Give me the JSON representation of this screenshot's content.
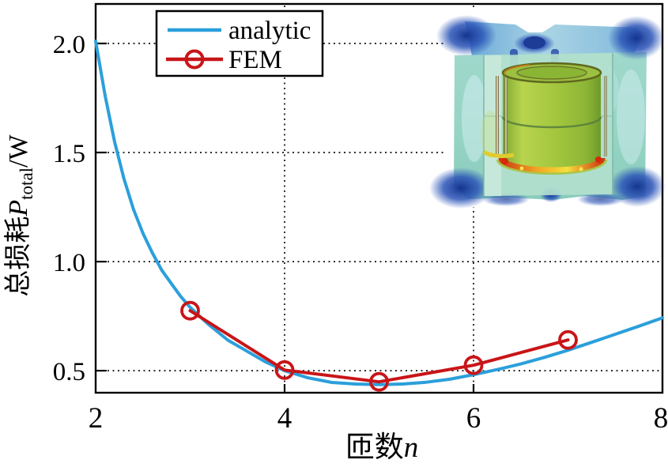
{
  "figure": {
    "legend": {
      "position": "top-left",
      "items": [
        {
          "label": "analytic",
          "marker": "line"
        },
        {
          "label": "FEM",
          "marker": "line-open-circle"
        }
      ]
    },
    "x_axis": {
      "title_prefix": "匝数",
      "title_symbol": "n",
      "tick_labels": [
        "2",
        "4",
        "6",
        "8"
      ]
    },
    "y_axis": {
      "title_prefix": "总损耗",
      "title_symbol": "P",
      "title_subscript": "total",
      "title_unit": "/W",
      "tick_labels": [
        "0.5",
        "1.0",
        "1.5",
        "2.0"
      ]
    }
  },
  "chart_data": {
    "type": "line",
    "title": "",
    "xlabel": "匝数n",
    "ylabel": "总损耗P_total/W",
    "xlim": [
      2,
      8
    ],
    "ylim": [
      0.399,
      2.181
    ],
    "x_ticks": [
      2,
      4,
      6,
      8
    ],
    "y_ticks": [
      0.5,
      1.0,
      1.5,
      2.0
    ],
    "grid": "dotted",
    "legend_position": "top-left",
    "series": [
      {
        "name": "analytic",
        "style": "line",
        "color": "#2B9FDB",
        "line_width": 4,
        "marker": "none",
        "x": [
          2.0,
          2.1,
          2.2,
          2.3,
          2.4,
          2.5,
          2.6,
          2.7,
          2.8,
          2.9,
          3.0,
          3.2,
          3.4,
          3.6,
          3.8,
          4.0,
          4.25,
          4.5,
          4.75,
          5.0,
          5.25,
          5.5,
          5.75,
          6.0,
          6.25,
          6.5,
          6.75,
          7.0,
          7.25,
          7.5,
          7.75,
          8.0
        ],
        "y": [
          2.01,
          1.76,
          1.55,
          1.38,
          1.24,
          1.13,
          1.04,
          0.96,
          0.9,
          0.84,
          0.79,
          0.71,
          0.64,
          0.59,
          0.54,
          0.5,
          0.467,
          0.446,
          0.439,
          0.436,
          0.439,
          0.447,
          0.461,
          0.482,
          0.505,
          0.531,
          0.561,
          0.594,
          0.63,
          0.667,
          0.704,
          0.742
        ]
      },
      {
        "name": "FEM",
        "style": "line+marker",
        "color": "#C81518",
        "line_width": 4,
        "marker": "open-circle",
        "marker_radius": 10.5,
        "x": [
          3,
          4,
          5,
          6,
          7
        ],
        "y": [
          0.775,
          0.503,
          0.449,
          0.525,
          0.641
        ]
      }
    ],
    "inset_alt": "3D FEM loss-density color plot of pot-core inductor"
  },
  "colors": {
    "analytic": "#2B9FDB",
    "fem": "#C81518",
    "axis": "#000000",
    "grid": "#111111",
    "background": "#FFFFFF"
  }
}
